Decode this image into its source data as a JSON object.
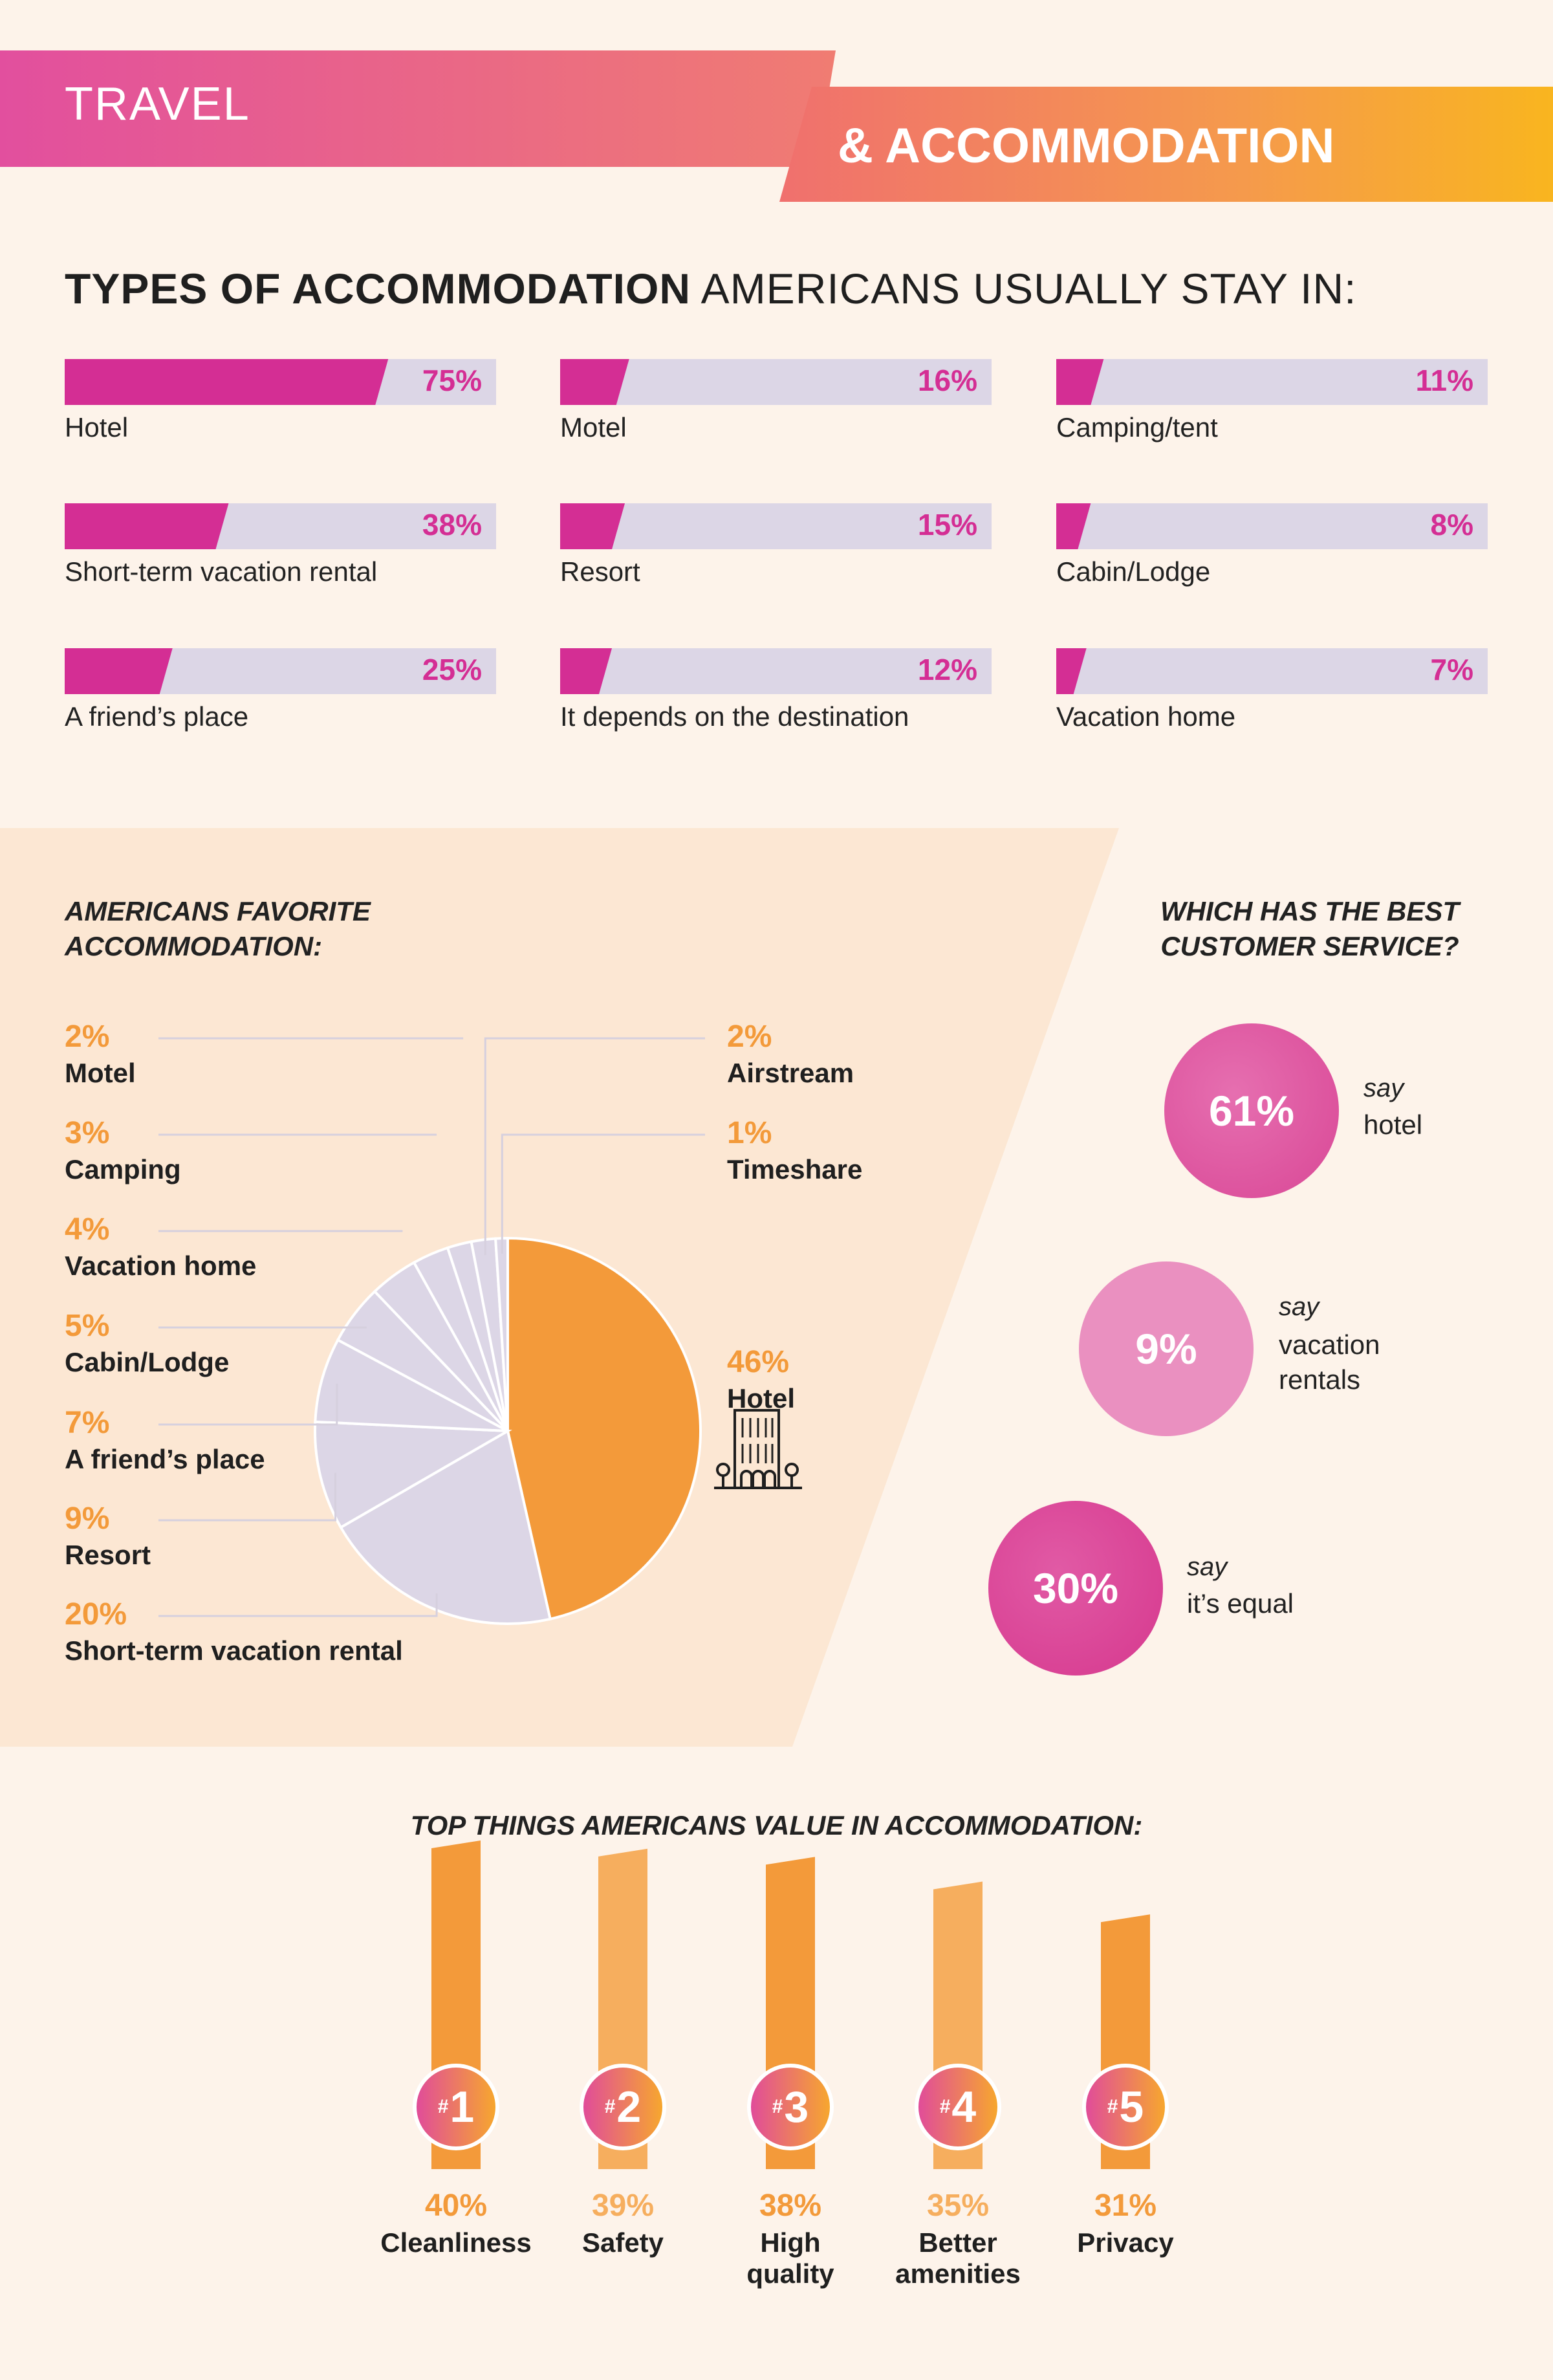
{
  "header": {
    "title": "TRAVEL",
    "subtitle": "& ACCOMMODATION"
  },
  "types_section": {
    "title_bold": "TYPES OF ACCOMMODATION",
    "title_rest": " AMERICANS USUALLY STAY IN:"
  },
  "favorite_section": {
    "title_line1": "AMERICANS FAVORITE",
    "title_line2": "ACCOMMODATION:"
  },
  "service_section": {
    "title_line1": "WHICH HAS THE BEST",
    "title_line2": "CUSTOMER SERVICE?",
    "say": "say",
    "items": [
      {
        "value": "61%",
        "label_lines": [
          "hotel"
        ]
      },
      {
        "value": "9%",
        "label_lines": [
          "vacation",
          "rentals"
        ]
      },
      {
        "value": "30%",
        "label_lines": [
          "it’s equal"
        ]
      }
    ]
  },
  "value_section": {
    "title": "TOP THINGS AMERICANS VALUE IN ACCOMMODATION:"
  },
  "colors": {
    "magenta": "#D42E94",
    "orange": "#F39A3A",
    "lavender": "#DCD6E6",
    "cream": "#FDF3EA",
    "peach": "#FCE7D3"
  },
  "chart_data": [
    {
      "type": "bar",
      "title": "TYPES OF ACCOMMODATION AMERICANS USUALLY STAY IN:",
      "categories": [
        "Hotel",
        "Short-term vacation rental",
        "A friend’s place",
        "Motel",
        "Resort",
        "It depends on the destination",
        "Camping/tent",
        "Cabin/Lodge",
        "Vacation home"
      ],
      "values": [
        75,
        38,
        25,
        16,
        15,
        12,
        11,
        8,
        7
      ],
      "value_labels": [
        "75%",
        "38%",
        "25%",
        "16%",
        "15%",
        "12%",
        "11%",
        "8%",
        "7%"
      ],
      "ylim": [
        0,
        100
      ]
    },
    {
      "type": "pie",
      "title": "AMERICANS FAVORITE ACCOMMODATION:",
      "categories": [
        "Hotel",
        "Short-term vacation rental",
        "Resort",
        "A friend’s place",
        "Cabin/Lodge",
        "Vacation home",
        "Camping",
        "Motel",
        "Airstream",
        "Timeshare"
      ],
      "values": [
        46,
        20,
        9,
        7,
        5,
        4,
        3,
        2,
        2,
        1
      ],
      "value_labels": [
        "46%",
        "20%",
        "9%",
        "7%",
        "5%",
        "4%",
        "3%",
        "2%",
        "2%",
        "1%"
      ]
    },
    {
      "type": "bar",
      "title": "TOP THINGS AMERICANS VALUE IN ACCOMMODATION:",
      "categories": [
        "Cleanliness",
        "Safety",
        "High quality",
        "Better amenities",
        "Privacy"
      ],
      "category_lines": [
        [
          "Cleanliness"
        ],
        [
          "Safety"
        ],
        [
          "High",
          "quality"
        ],
        [
          "Better",
          "amenities"
        ],
        [
          "Privacy"
        ]
      ],
      "ranks": [
        "1",
        "2",
        "3",
        "4",
        "5"
      ],
      "rank_prefix": "#",
      "values": [
        40,
        39,
        38,
        35,
        31
      ],
      "value_labels": [
        "40%",
        "39%",
        "38%",
        "35%",
        "31%"
      ]
    }
  ]
}
